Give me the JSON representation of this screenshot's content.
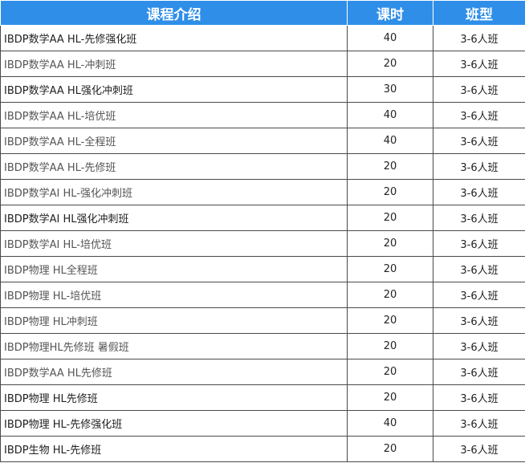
{
  "header": {
    "course": "课程介绍",
    "hours": "课时",
    "class_type": "班型"
  },
  "rows": [
    {
      "name": "IBDP数学AA HL-先修强化班",
      "hours": "40",
      "class_type": "3-6人班"
    },
    {
      "name": "IBDP数学AA HL-冲刺班",
      "hours": "20",
      "class_type": "3-6人班"
    },
    {
      "name": "IBDP数学AA HL强化冲刺班",
      "hours": "30",
      "class_type": "3-6人班"
    },
    {
      "name": "IBDP数学AA HL-培优班",
      "hours": "40",
      "class_type": "3-6人班"
    },
    {
      "name": "IBDP数学AA HL-全程班",
      "hours": "40",
      "class_type": "3-6人班"
    },
    {
      "name": "IBDP数学AA HL-先修班",
      "hours": "20",
      "class_type": "3-6人班"
    },
    {
      "name": "IBDP数学AI HL-强化冲刺班",
      "hours": "20",
      "class_type": "3-6人班"
    },
    {
      "name": "IBDP数学AI HL强化冲刺班",
      "hours": "20",
      "class_type": "3-6人班"
    },
    {
      "name": "IBDP数学AI HL-培优班",
      "hours": "20",
      "class_type": "3-6人班"
    },
    {
      "name": "IBDP物理 HL全程班",
      "hours": "20",
      "class_type": "3-6人班"
    },
    {
      "name": "IBDP物理 HL-培优班",
      "hours": "20",
      "class_type": "3-6人班"
    },
    {
      "name": "IBDP物理 HL冲刺班",
      "hours": "20",
      "class_type": "3-6人班"
    },
    {
      "name": "IBDP物理HL先修班 暑假班",
      "hours": "20",
      "class_type": "3-6人班"
    },
    {
      "name": "IBDP数学AA HL先修班",
      "hours": "20",
      "class_type": "3-6人班"
    },
    {
      "name": "IBDP物理 HL先修班",
      "hours": "20",
      "class_type": "3-6人班"
    },
    {
      "name": "IBDP物理 HL-先修强化班",
      "hours": "40",
      "class_type": "3-6人班"
    },
    {
      "name": "IBDP生物 HL-先修班",
      "hours": "20",
      "class_type": "3-6人班"
    }
  ],
  "colors": {
    "header_bg": "#2f8fe8",
    "header_text": "#ffffff",
    "border": "#4a4a4a"
  }
}
